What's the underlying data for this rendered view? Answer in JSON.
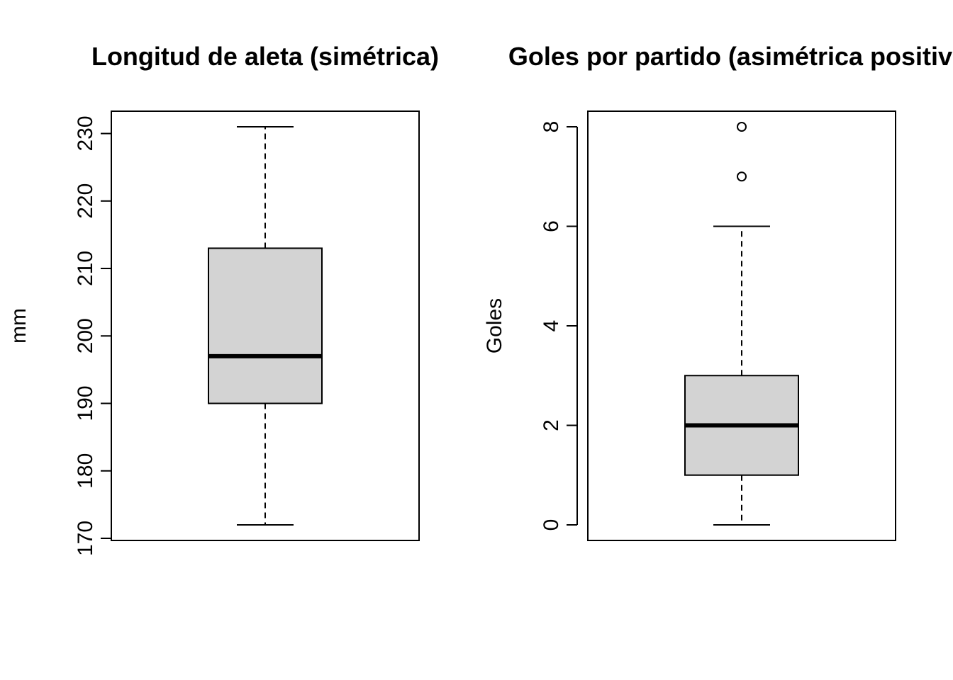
{
  "chart_data": [
    {
      "type": "boxplot",
      "title": "Longitud de aleta (simétrica)",
      "xlabel": "",
      "ylabel": "mm",
      "ylim": [
        170,
        231
      ],
      "yticks": [
        170,
        180,
        190,
        200,
        210,
        220,
        230
      ],
      "box": {
        "min": 172,
        "q1": 190,
        "median": 197,
        "q3": 213,
        "max": 231
      },
      "outliers": [],
      "fill": "#d3d3d3"
    },
    {
      "type": "boxplot",
      "title": "Goles por partido (asimétrica positiva)",
      "xlabel": "",
      "ylabel": "Goles",
      "ylim": [
        0,
        8
      ],
      "yticks": [
        0,
        2,
        4,
        6,
        8
      ],
      "box": {
        "min": 0,
        "q1": 1,
        "median": 2,
        "q3": 3,
        "max": 6
      },
      "outliers": [
        7,
        8
      ],
      "fill": "#d3d3d3"
    }
  ]
}
